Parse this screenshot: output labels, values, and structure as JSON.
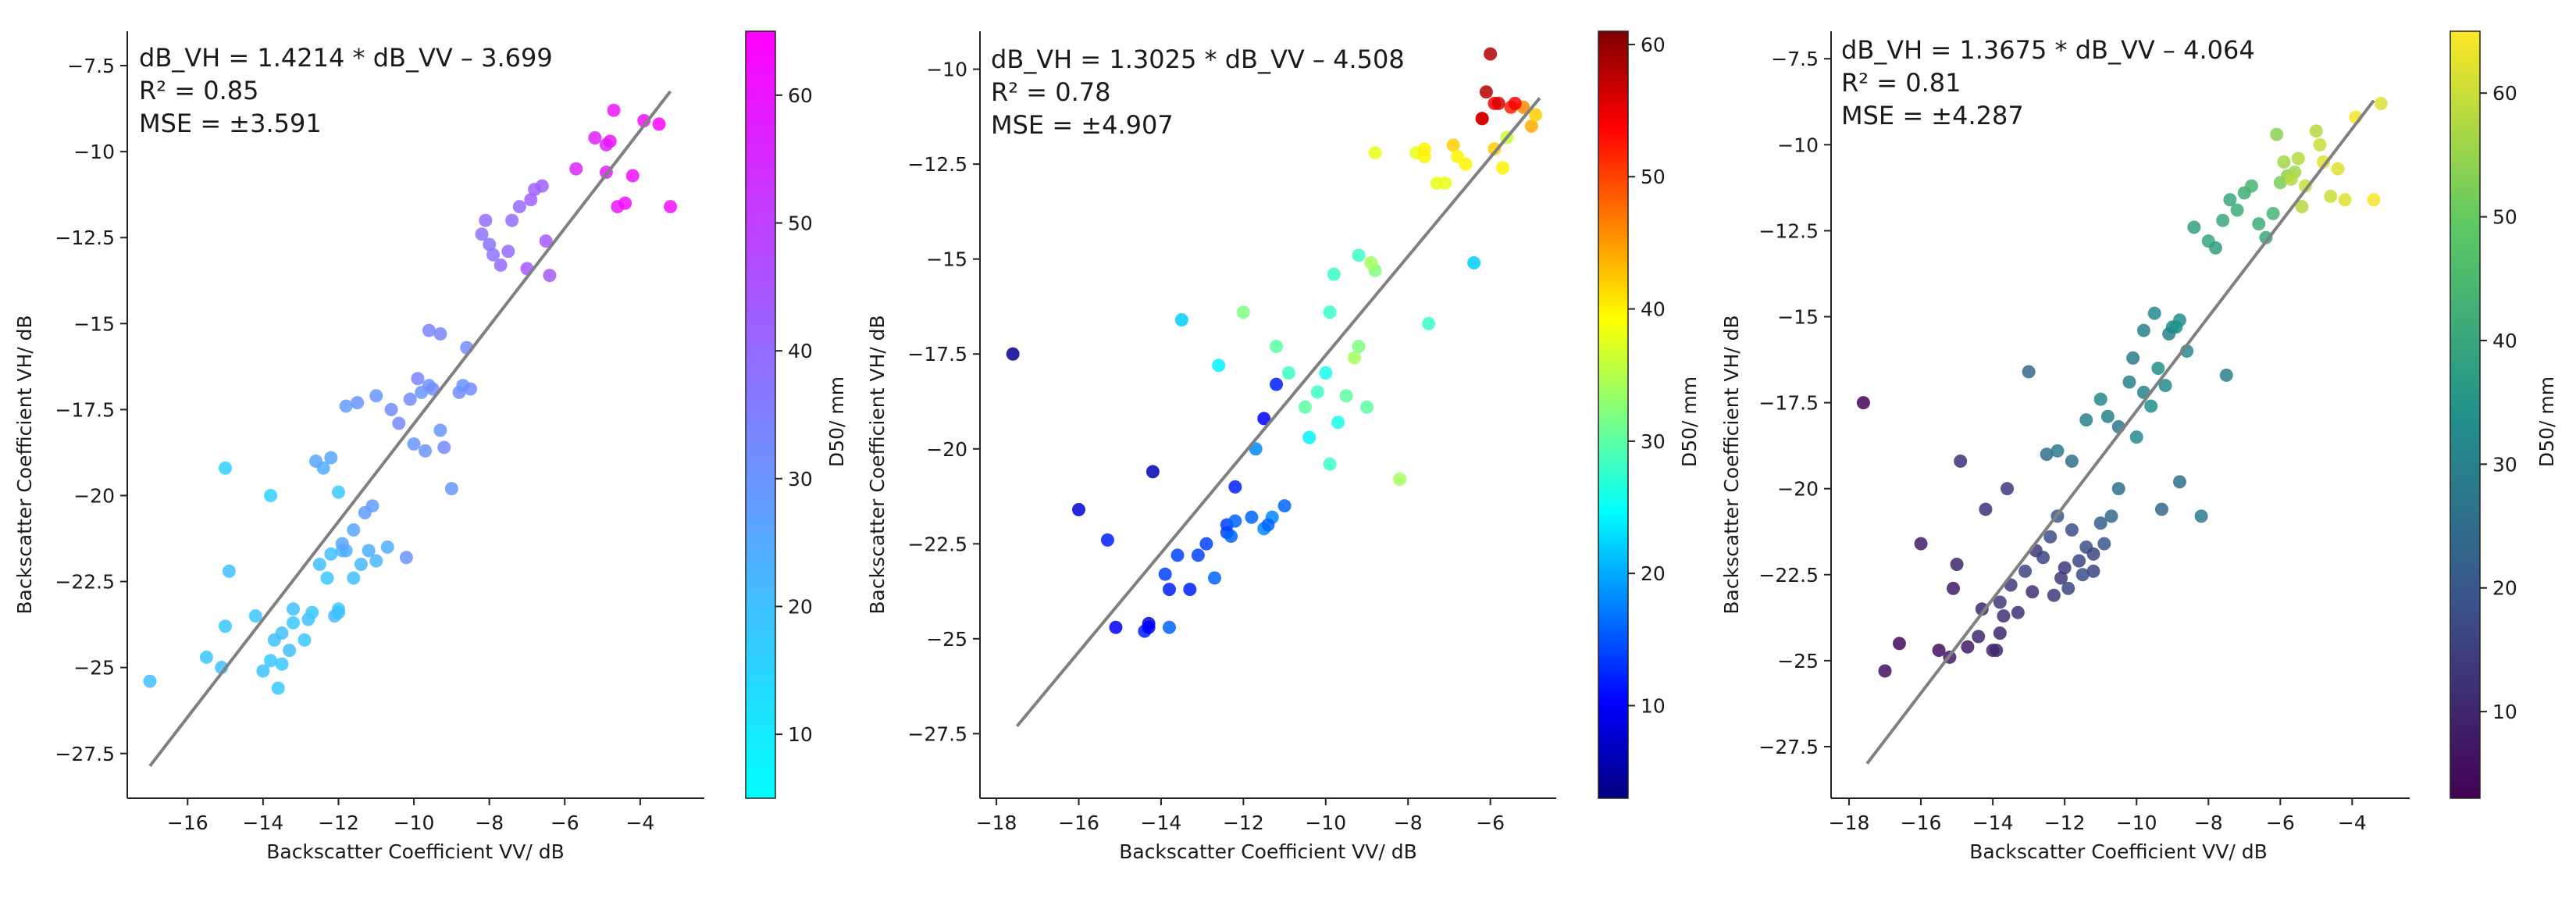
{
  "chart_data": [
    {
      "type": "scatter",
      "panel": "left",
      "equation": "dB_VH = 1.4214 * dB_VV – 3.699",
      "r2": "R² = 0.85",
      "mse": "MSE = ±3.591",
      "xlabel": "Backscatter Coefficient VV/ dB",
      "ylabel": "Backscatter Coefficient VH/ dB",
      "xlim": [
        -17.6,
        -2.3
      ],
      "ylim": [
        -28.8,
        -6.5
      ],
      "xticks": [
        -16,
        -14,
        -12,
        -10,
        -8,
        -6,
        -4
      ],
      "yticks": [
        -27.5,
        -25.0,
        -22.5,
        -20.0,
        -17.5,
        -15.0,
        -12.5,
        -10.0,
        -7.5
      ],
      "fit_line": {
        "slope": 1.4214,
        "intercept": -3.699,
        "x_range": [
          -17.0,
          -3.2
        ]
      },
      "colorbar": {
        "label": "D50/ mm",
        "min": 5,
        "max": 65,
        "ticks": [
          10,
          20,
          30,
          40,
          50,
          60
        ],
        "colormap": "cool"
      },
      "points": {
        "x": [
          -17.0,
          -15.5,
          -15.1,
          -15.0,
          -14.9,
          -14.2,
          -14.0,
          -13.8,
          -13.7,
          -13.6,
          -13.5,
          -13.5,
          -13.3,
          -13.2,
          -13.2,
          -12.9,
          -12.8,
          -12.7,
          -12.5,
          -12.3,
          -12.2,
          -12.1,
          -12.0,
          -12.0,
          -11.9,
          -11.8,
          -11.6,
          -11.4,
          -11.2,
          -11.0,
          -10.7,
          -11.9,
          -11.6,
          -11.3,
          -11.1,
          -10.2,
          -15.0,
          -13.8,
          -12.0,
          -12.4,
          -12.6,
          -12.2,
          -11.8,
          -11.5,
          -11.0,
          -10.6,
          -10.4,
          -10.1,
          -9.8,
          -9.6,
          -9.5,
          -9.3,
          -9.2,
          -10.0,
          -9.7,
          -9.0,
          -8.8,
          -8.7,
          -8.5,
          -8.6,
          -9.3,
          -9.6,
          -9.9,
          -8.2,
          -8.0,
          -7.9,
          -7.7,
          -7.5,
          -7.4,
          -7.2,
          -6.9,
          -6.8,
          -6.6,
          -6.5,
          -6.4,
          -7.0,
          -8.1,
          -5.7,
          -5.2,
          -4.9,
          -4.8,
          -4.9,
          -4.7,
          -4.6,
          -4.4,
          -4.2,
          -3.9,
          -3.5,
          -3.2
        ],
        "y": [
          -25.4,
          -24.7,
          -25.0,
          -23.8,
          -22.2,
          -23.5,
          -25.1,
          -24.8,
          -24.2,
          -25.6,
          -24.0,
          -24.9,
          -24.5,
          -23.7,
          -23.3,
          -24.2,
          -23.6,
          -23.4,
          -22.0,
          -22.4,
          -21.7,
          -23.5,
          -23.3,
          -23.4,
          -21.6,
          -21.6,
          -22.4,
          -22.0,
          -21.6,
          -21.9,
          -21.5,
          -21.4,
          -21.0,
          -20.5,
          -20.3,
          -21.8,
          -19.2,
          -20.0,
          -19.9,
          -19.2,
          -19.0,
          -18.9,
          -17.4,
          -17.3,
          -17.1,
          -17.5,
          -17.9,
          -17.2,
          -17.0,
          -16.8,
          -16.9,
          -18.1,
          -18.6,
          -18.5,
          -18.7,
          -19.8,
          -17.0,
          -16.8,
          -16.9,
          -15.7,
          -15.3,
          -15.2,
          -16.6,
          -12.4,
          -12.7,
          -13.0,
          -13.3,
          -12.9,
          -12.0,
          -11.6,
          -11.4,
          -11.1,
          -11.0,
          -12.6,
          -13.6,
          -13.4,
          -12.0,
          -10.5,
          -9.6,
          -9.8,
          -9.7,
          -10.6,
          -8.8,
          -11.6,
          -11.5,
          -10.7,
          -9.1,
          -9.2,
          -11.6
        ],
        "d50": [
          20,
          18,
          20,
          18,
          20,
          18,
          20,
          18,
          20,
          18,
          20,
          18,
          20,
          18,
          20,
          18,
          20,
          18,
          20,
          18,
          20,
          22,
          18,
          20,
          22,
          24,
          20,
          22,
          24,
          22,
          24,
          26,
          26,
          28,
          28,
          30,
          16,
          16,
          18,
          24,
          26,
          26,
          28,
          30,
          30,
          32,
          32,
          32,
          30,
          30,
          32,
          30,
          32,
          30,
          30,
          30,
          32,
          30,
          32,
          32,
          34,
          34,
          34,
          38,
          38,
          38,
          40,
          40,
          40,
          40,
          42,
          42,
          42,
          44,
          44,
          44,
          40,
          56,
          58,
          58,
          60,
          58,
          60,
          60,
          62,
          62,
          62,
          64,
          62
        ]
      }
    },
    {
      "type": "scatter",
      "panel": "middle",
      "equation": "dB_VH = 1.3025 * dB_VV – 4.508",
      "r2": "R² = 0.78",
      "mse": "MSE = ±4.907",
      "xlabel": "Backscatter Coefficient VV/ dB",
      "ylabel": "Backscatter Coefficient VH/ dB",
      "xlim": [
        -18.4,
        -4.4
      ],
      "ylim": [
        -29.2,
        -9.0
      ],
      "xticks": [
        -18,
        -16,
        -14,
        -12,
        -10,
        -8,
        -6
      ],
      "yticks": [
        -27.5,
        -25.0,
        -22.5,
        -20.0,
        -17.5,
        -15.0,
        -12.5,
        -10.0
      ],
      "fit_line": {
        "slope": 1.3025,
        "intercept": -4.508,
        "x_range": [
          -17.5,
          -4.8
        ]
      },
      "colorbar": {
        "label": "D50/ mm",
        "min": 3,
        "max": 61,
        "ticks": [
          10,
          20,
          30,
          40,
          50,
          60
        ],
        "colormap": "jet"
      },
      "points": {
        "x": [
          -17.6,
          -16.0,
          -15.3,
          -15.1,
          -14.4,
          -14.3,
          -14.2,
          -14.3,
          -13.9,
          -13.8,
          -13.6,
          -13.3,
          -13.1,
          -12.9,
          -12.7,
          -12.4,
          -12.3,
          -12.2,
          -12.4,
          -12.2,
          -11.8,
          -11.5,
          -11.3,
          -11.4,
          -11.0,
          -11.5,
          -11.2,
          -11.7,
          -13.5,
          -13.8,
          -12.0,
          -12.6,
          -11.2,
          -10.9,
          -10.5,
          -10.2,
          -10.0,
          -10.4,
          -9.9,
          -9.7,
          -9.5,
          -9.3,
          -9.2,
          -9.0,
          -9.9,
          -9.8,
          -8.8,
          -8.9,
          -9.2,
          -8.2,
          -7.5,
          -7.3,
          -6.4,
          -8.8,
          -7.8,
          -7.6,
          -7.6,
          -7.1,
          -6.9,
          -6.8,
          -6.6,
          -5.7,
          -5.6,
          -5.9,
          -5.2,
          -5.0,
          -4.9,
          -6.2,
          -6.1,
          -5.9,
          -6.0,
          -5.8,
          -5.5,
          -5.4,
          -6.2
        ],
        "y": [
          -17.5,
          -21.6,
          -22.4,
          -24.7,
          -24.8,
          -24.6,
          -20.6,
          -24.7,
          -23.3,
          -23.7,
          -22.8,
          -23.7,
          -22.8,
          -22.5,
          -23.4,
          -22.2,
          -22.3,
          -21.0,
          -22.0,
          -21.9,
          -21.8,
          -22.1,
          -21.8,
          -22.0,
          -21.5,
          -19.2,
          -18.3,
          -20.0,
          -16.6,
          -24.7,
          -16.4,
          -17.8,
          -17.3,
          -18.0,
          -18.9,
          -18.5,
          -18.0,
          -19.7,
          -20.4,
          -19.3,
          -18.6,
          -17.6,
          -17.3,
          -18.9,
          -16.4,
          -15.4,
          -15.3,
          -15.1,
          -14.9,
          -20.8,
          -16.7,
          -13.0,
          -15.1,
          -12.2,
          -12.2,
          -12.3,
          -12.1,
          -13.0,
          -12.0,
          -12.3,
          -12.5,
          -12.6,
          -11.8,
          -12.1,
          -11.0,
          -11.5,
          -11.2,
          -11.3,
          -10.6,
          -10.9,
          -9.6,
          -10.9,
          -11.0,
          -10.9,
          -11.3
        ],
        "d50": [
          4,
          8,
          12,
          10,
          12,
          8,
          6,
          10,
          14,
          12,
          14,
          12,
          14,
          14,
          16,
          14,
          16,
          12,
          14,
          16,
          16,
          18,
          18,
          16,
          16,
          10,
          12,
          18,
          22,
          16,
          32,
          24,
          30,
          28,
          30,
          28,
          26,
          24,
          28,
          26,
          30,
          34,
          32,
          30,
          28,
          28,
          32,
          34,
          28,
          34,
          28,
          38,
          22,
          38,
          38,
          40,
          40,
          38,
          42,
          40,
          40,
          40,
          36,
          42,
          46,
          44,
          42,
          56,
          58,
          54,
          58,
          56,
          52,
          54,
          56
        ]
      }
    },
    {
      "type": "scatter",
      "panel": "right",
      "equation": "dB_VH = 1.3675 * dB_VV – 4.064",
      "r2": "R² = 0.81",
      "mse": "MSE = ±4.287",
      "xlabel": "Backscatter Coefficient VV/ dB",
      "ylabel": "Backscatter Coefficient VH/ dB",
      "xlim": [
        -18.5,
        -2.4
      ],
      "ylim": [
        -29.0,
        -6.7
      ],
      "xticks": [
        -18,
        -16,
        -14,
        -12,
        -10,
        -8,
        -6,
        -4
      ],
      "yticks": [
        -27.5,
        -25.0,
        -22.5,
        -20.0,
        -17.5,
        -15.0,
        -12.5,
        -10.0,
        -7.5
      ],
      "fit_line": {
        "slope": 1.3675,
        "intercept": -4.064,
        "x_range": [
          -17.5,
          -3.4
        ]
      },
      "colorbar": {
        "label": "D50/ mm",
        "min": 3,
        "max": 65,
        "ticks": [
          10,
          20,
          30,
          40,
          50,
          60
        ],
        "colormap": "viridis"
      },
      "points": {
        "x": [
          -17.6,
          -17.0,
          -16.6,
          -16.0,
          -15.5,
          -15.2,
          -15.0,
          -14.9,
          -14.7,
          -14.4,
          -14.2,
          -14.0,
          -13.8,
          -13.7,
          -13.5,
          -13.9,
          -13.6,
          -13.3,
          -13.1,
          -13.0,
          -12.8,
          -12.6,
          -12.4,
          -12.2,
          -12.0,
          -11.8,
          -11.6,
          -11.4,
          -11.2,
          -11.0,
          -10.9,
          -10.7,
          -10.5,
          -15.1,
          -14.3,
          -13.8,
          -12.9,
          -12.3,
          -12.1,
          -11.9,
          -11.5,
          -11.2,
          -12.5,
          -12.2,
          -11.8,
          -11.4,
          -11.0,
          -10.8,
          -10.5,
          -10.2,
          -10.0,
          -9.8,
          -9.6,
          -9.4,
          -9.2,
          -9.0,
          -8.8,
          -8.6,
          -9.8,
          -10.1,
          -9.5,
          -9.1,
          -8.9,
          -8.4,
          -8.0,
          -7.8,
          -7.6,
          -7.4,
          -7.2,
          -7.0,
          -6.8,
          -6.6,
          -6.4,
          -6.2,
          -6.0,
          -5.8,
          -5.6,
          -5.4,
          -7.5,
          -8.2,
          -8.8,
          -9.3,
          -6.1,
          -5.9,
          -5.7,
          -5.5,
          -5.3,
          -5.0,
          -4.9,
          -4.8,
          -4.6,
          -4.4,
          -4.2,
          -3.9,
          -3.4,
          -3.2
        ],
        "y": [
          -17.5,
          -25.3,
          -24.5,
          -21.6,
          -24.7,
          -24.9,
          -22.2,
          -19.2,
          -24.6,
          -24.3,
          -20.6,
          -24.7,
          -23.3,
          -23.7,
          -22.8,
          -24.7,
          -20.0,
          -23.6,
          -22.4,
          -16.6,
          -21.8,
          -22.0,
          -21.4,
          -20.8,
          -22.3,
          -21.2,
          -22.1,
          -21.7,
          -22.4,
          -21.0,
          -21.6,
          -20.8,
          -20.0,
          -22.9,
          -23.5,
          -24.2,
          -23.0,
          -23.1,
          -22.6,
          -22.9,
          -22.5,
          -21.9,
          -19.0,
          -18.9,
          -19.2,
          -18.0,
          -17.4,
          -17.9,
          -18.2,
          -16.9,
          -18.5,
          -17.2,
          -17.6,
          -16.5,
          -17.0,
          -15.3,
          -15.1,
          -16.0,
          -15.4,
          -16.2,
          -14.9,
          -15.5,
          -15.3,
          -12.4,
          -12.8,
          -13.0,
          -12.2,
          -11.6,
          -11.9,
          -11.4,
          -11.2,
          -12.3,
          -12.7,
          -12.0,
          -11.1,
          -10.9,
          -10.8,
          -11.8,
          -16.7,
          -20.8,
          -19.8,
          -20.6,
          -9.7,
          -10.5,
          -11.0,
          -10.4,
          -11.2,
          -9.6,
          -10.0,
          -10.5,
          -11.5,
          -10.7,
          -11.6,
          -9.2,
          -11.6,
          -8.8
        ],
        "d50": [
          4,
          6,
          5,
          8,
          6,
          8,
          10,
          12,
          8,
          10,
          12,
          10,
          14,
          12,
          14,
          10,
          14,
          12,
          16,
          24,
          14,
          16,
          18,
          20,
          14,
          18,
          16,
          18,
          16,
          22,
          20,
          24,
          26,
          8,
          10,
          10,
          12,
          14,
          14,
          16,
          18,
          16,
          26,
          28,
          26,
          30,
          32,
          30,
          28,
          30,
          32,
          30,
          34,
          34,
          32,
          34,
          34,
          32,
          30,
          28,
          32,
          30,
          34,
          38,
          40,
          38,
          40,
          40,
          42,
          42,
          44,
          42,
          40,
          44,
          52,
          54,
          56,
          58,
          30,
          28,
          26,
          24,
          54,
          56,
          58,
          58,
          60,
          58,
          60,
          62,
          60,
          62,
          62,
          64,
          64,
          62
        ]
      }
    }
  ]
}
